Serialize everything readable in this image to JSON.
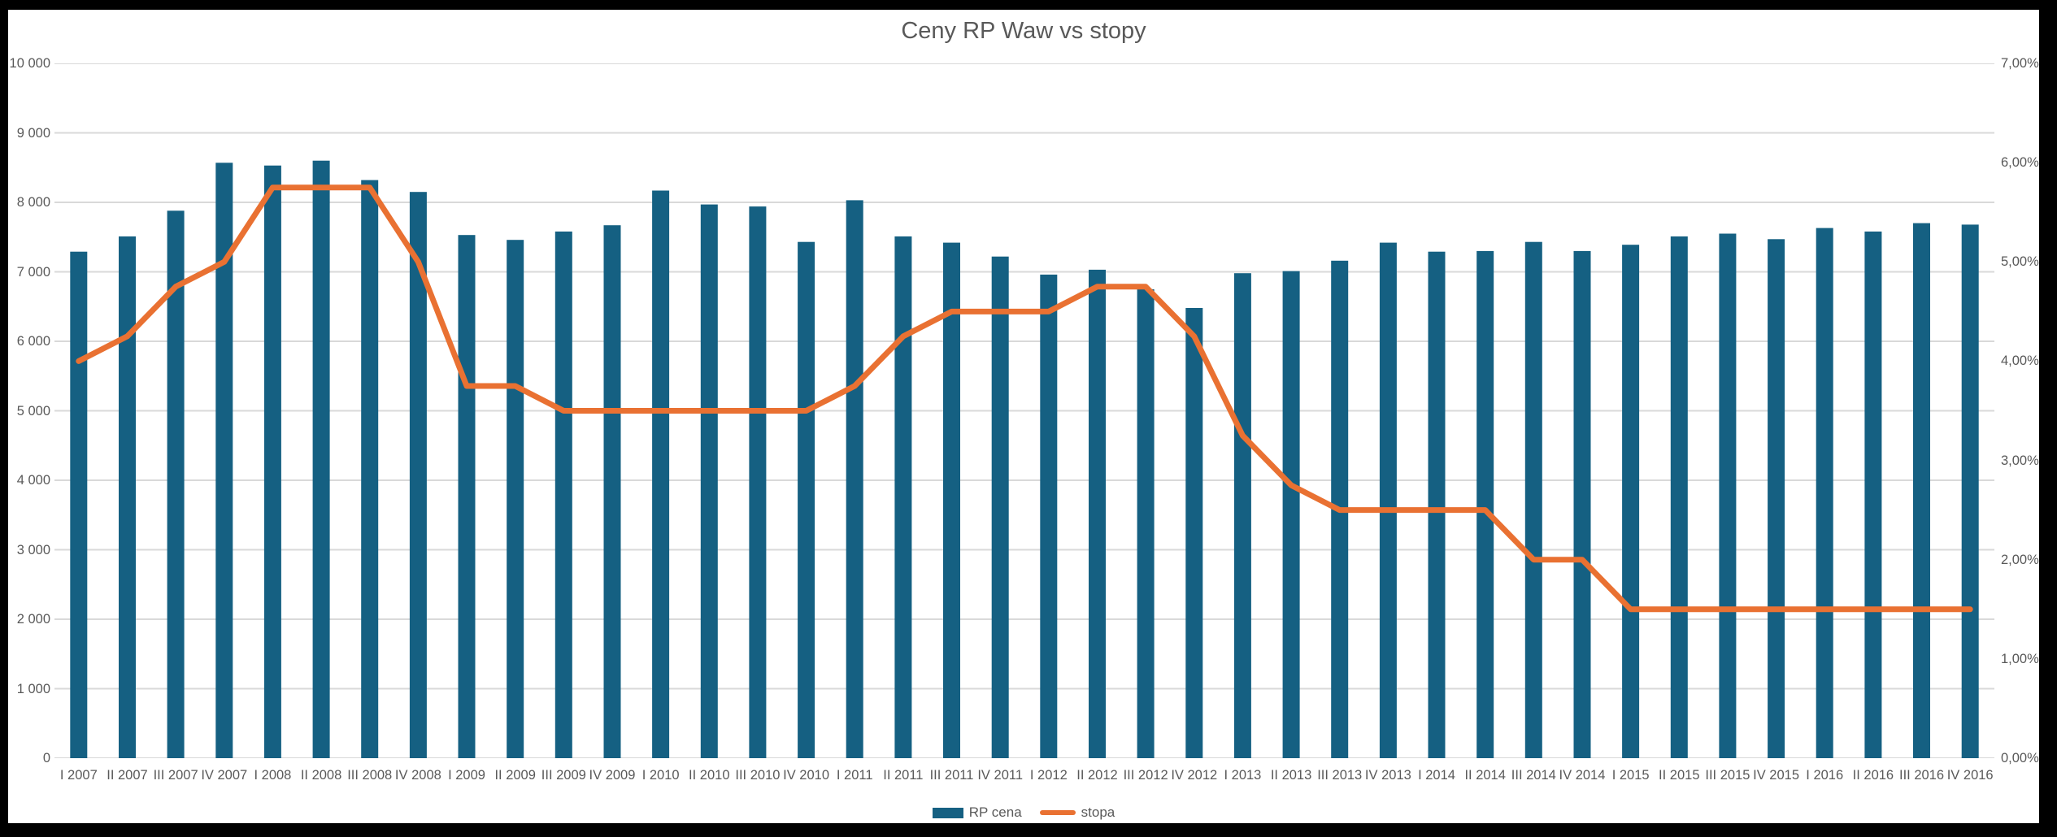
{
  "window": {
    "background": "#000000",
    "canvas_background": "#FFFFFF",
    "text_color": "#595959",
    "gridline_color": "#D9D9D9"
  },
  "chart_data": {
    "type": "bar+line combo",
    "title": "Ceny RP Waw vs stopy",
    "grid": "horizontal only",
    "legend_position": "bottom",
    "categories": [
      "I 2007",
      "II 2007",
      "III 2007",
      "IV 2007",
      "I 2008",
      "II 2008",
      "III 2008",
      "IV 2008",
      "I 2009",
      "II 2009",
      "III 2009",
      "IV 2009",
      "I 2010",
      "II 2010",
      "III 2010",
      "IV 2010",
      "I 2011",
      "II 2011",
      "III 2011",
      "IV 2011",
      "I 2012",
      "II 2012",
      "III 2012",
      "IV 2012",
      "I 2013",
      "II 2013",
      "III 2013",
      "IV 2013",
      "I 2014",
      "II 2014",
      "III 2014",
      "IV 2014",
      "I 2015",
      "II 2015",
      "III 2015",
      "IV 2015",
      "I 2016",
      "II 2016",
      "III 2016",
      "IV 2016"
    ],
    "series": [
      {
        "name": "RP cena",
        "type": "bar",
        "axis": "left",
        "color": "#156082",
        "values": [
          7290,
          7510,
          7880,
          8570,
          8530,
          8600,
          8320,
          8150,
          7530,
          7460,
          7580,
          7670,
          8170,
          7970,
          7940,
          7430,
          8030,
          7510,
          7420,
          7220,
          6960,
          7030,
          6750,
          6480,
          6980,
          7010,
          7160,
          7420,
          7290,
          7300,
          7430,
          7300,
          7390,
          7510,
          7550,
          7470,
          7630,
          7580,
          7700,
          7680
        ]
      },
      {
        "name": "stopa",
        "type": "line",
        "axis": "right",
        "color": "#E97132",
        "values": [
          4.0,
          4.25,
          4.75,
          5.0,
          5.75,
          5.75,
          5.75,
          5.0,
          3.75,
          3.75,
          3.5,
          3.5,
          3.5,
          3.5,
          3.5,
          3.5,
          3.75,
          4.25,
          4.5,
          4.5,
          4.5,
          4.75,
          4.75,
          4.25,
          3.25,
          2.75,
          2.5,
          2.5,
          2.5,
          2.5,
          2.0,
          2.0,
          1.5,
          1.5,
          1.5,
          1.5,
          1.5,
          1.5,
          1.5,
          1.5
        ]
      }
    ],
    "axes": {
      "left": {
        "min": 0,
        "max": 10000,
        "step": 1000,
        "tick_labels": [
          "0",
          "1 000",
          "2 000",
          "3 000",
          "4 000",
          "5 000",
          "6 000",
          "7 000",
          "8 000",
          "9 000",
          "10 000"
        ]
      },
      "right": {
        "min": 0,
        "max": 7,
        "step": 1,
        "tick_labels": [
          "0,00%",
          "1,00%",
          "2,00%",
          "3,00%",
          "4,00%",
          "5,00%",
          "6,00%",
          "7,00%"
        ]
      }
    }
  },
  "legend": {
    "items": [
      {
        "label": "RP cena",
        "swatch": "bar-swatch"
      },
      {
        "label": "stopa",
        "swatch": "line-swatch"
      }
    ]
  }
}
